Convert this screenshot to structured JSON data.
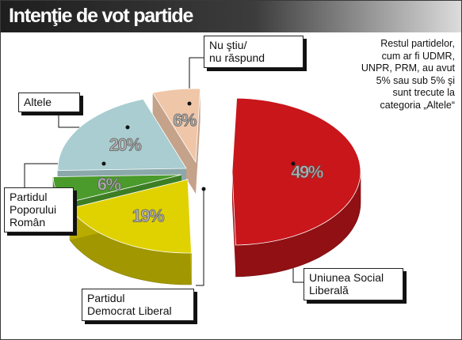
{
  "chart_data": {
    "type": "pie",
    "title": "Intenţie de vot partide",
    "note": [
      "Restul partidelor,",
      "cum ar fi UDMR,",
      "UNPR, PRM, au avut",
      "5% sau sub 5% şi",
      "sunt trecute la",
      "categoria „Altele“"
    ],
    "slices": [
      {
        "key": "usl",
        "label_lines": [
          "Uniunea Social",
          "Liberală"
        ],
        "value": 49,
        "value_label": "49%",
        "color": "#c8161b"
      },
      {
        "key": "pdl",
        "label_lines": [
          "Partidul",
          "Democrat Liberal"
        ],
        "value": 19,
        "value_label": "19%",
        "color": "#e0d200"
      },
      {
        "key": "ppr",
        "label_lines": [
          "Partidul",
          "Poporului",
          "Român"
        ],
        "value": 6,
        "value_label": "6%",
        "color": "#4a9a2c"
      },
      {
        "key": "altele",
        "label_lines": [
          "Altele"
        ],
        "value": 20,
        "value_label": "20%",
        "color": "#a9cdd0"
      },
      {
        "key": "nustiu",
        "label_lines": [
          "Nu ştiu/",
          "nu răspund"
        ],
        "value": 6,
        "value_label": "6%",
        "color": "#f0c6a8"
      }
    ]
  }
}
